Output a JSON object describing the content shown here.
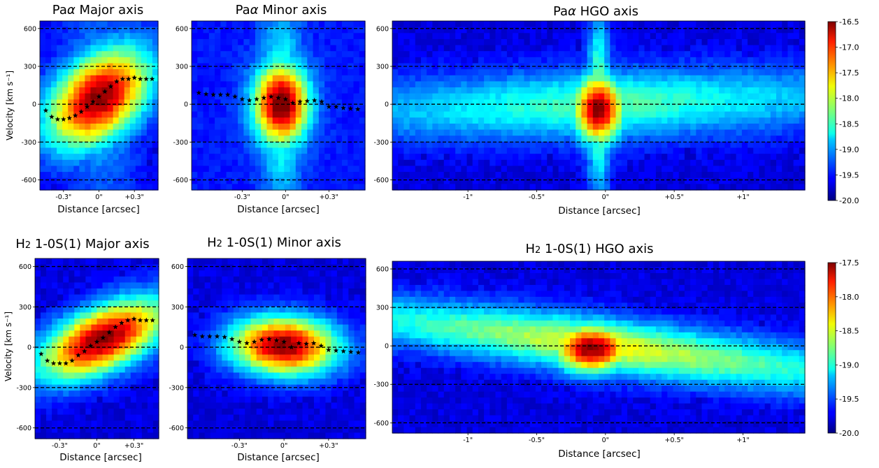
{
  "colors": {
    "dashed_line": "#000000",
    "stars": "#000000",
    "colormap": "jet"
  },
  "chart_data": [
    {
      "id": "pa_major",
      "type": "heatmap",
      "title_main": "Pa",
      "title_greek": "α",
      "title_rest": " Major axis",
      "xlabel": "Distance [arcsec]",
      "ylabel": "Velocity [km s⁻¹]",
      "xlim": [
        -0.5,
        0.5
      ],
      "ylim": [
        -680,
        660
      ],
      "xticks": [
        {
          "v": -0.3,
          "label": "-0.3\""
        },
        {
          "v": 0,
          "label": "0\""
        },
        {
          "v": 0.3,
          "label": "+0.3\""
        }
      ],
      "yticks": [
        {
          "v": 600,
          "label": "600"
        },
        {
          "v": 300,
          "label": "300"
        },
        {
          "v": 0,
          "label": "0"
        },
        {
          "v": -300,
          "label": "-300"
        },
        {
          "v": -600,
          "label": "-600"
        }
      ],
      "hlines": [
        600,
        300,
        0,
        -300,
        -600
      ],
      "emission": {
        "x0": 0.0,
        "v0": 50,
        "sx": 0.3,
        "sv": 250,
        "slope": 750,
        "peak": 1.0,
        "wing": 0.25,
        "wing_w": 0.25,
        "floor": 0.0
      },
      "rotation_curve": [
        [
          -0.45,
          -50
        ],
        [
          -0.4,
          -100
        ],
        [
          -0.35,
          -120
        ],
        [
          -0.3,
          -120
        ],
        [
          -0.25,
          -110
        ],
        [
          -0.2,
          -90
        ],
        [
          -0.15,
          -60
        ],
        [
          -0.1,
          -20
        ],
        [
          -0.05,
          20
        ],
        [
          0.0,
          60
        ],
        [
          0.05,
          100
        ],
        [
          0.1,
          140
        ],
        [
          0.15,
          180
        ],
        [
          0.2,
          200
        ],
        [
          0.25,
          200
        ],
        [
          0.3,
          210
        ],
        [
          0.35,
          200
        ],
        [
          0.4,
          200
        ],
        [
          0.45,
          200
        ]
      ]
    },
    {
      "id": "pa_minor",
      "type": "heatmap",
      "title_main": "Pa",
      "title_greek": "α",
      "title_rest": " Minor axis",
      "xlabel": "Distance [arcsec]",
      "ylabel": "",
      "xlim": [
        -0.65,
        0.55
      ],
      "ylim": [
        -680,
        660
      ],
      "xticks": [
        {
          "v": -0.3,
          "label": "-0.3\""
        },
        {
          "v": 0,
          "label": "0\""
        },
        {
          "v": 0.3,
          "label": "+0.3\""
        }
      ],
      "yticks": [
        {
          "v": 600,
          "label": "600"
        },
        {
          "v": 300,
          "label": "300"
        },
        {
          "v": 0,
          "label": "0"
        },
        {
          "v": -300,
          "label": "-300"
        },
        {
          "v": -600,
          "label": "-600"
        }
      ],
      "hlines": [
        600,
        300,
        0,
        -300,
        -600
      ],
      "emission": {
        "x0": -0.03,
        "v0": 0,
        "sx": 0.13,
        "sv": 220,
        "slope": 0,
        "peak": 1.0,
        "wing": 0.35,
        "wing_w": 0.1,
        "floor": 0.05
      },
      "rotation_curve": [
        [
          -0.6,
          90
        ],
        [
          -0.55,
          80
        ],
        [
          -0.5,
          75
        ],
        [
          -0.45,
          75
        ],
        [
          -0.4,
          75
        ],
        [
          -0.35,
          60
        ],
        [
          -0.3,
          40
        ],
        [
          -0.25,
          30
        ],
        [
          -0.2,
          40
        ],
        [
          -0.15,
          50
        ],
        [
          -0.1,
          60
        ],
        [
          -0.05,
          50
        ],
        [
          0.0,
          40
        ],
        [
          0.05,
          10
        ],
        [
          0.1,
          20
        ],
        [
          0.15,
          25
        ],
        [
          0.2,
          30
        ],
        [
          0.25,
          20
        ],
        [
          0.3,
          -20
        ],
        [
          0.35,
          -20
        ],
        [
          0.4,
          -30
        ],
        [
          0.45,
          -35
        ],
        [
          0.5,
          -40
        ]
      ]
    },
    {
      "id": "pa_hgo",
      "type": "heatmap",
      "title_main": "Pa",
      "title_greek": "α",
      "title_rest": " HGO axis",
      "xlabel": "Distance [arcsec]",
      "ylabel": "",
      "xlim": [
        -1.55,
        1.45
      ],
      "ylim": [
        -680,
        660
      ],
      "xticks": [
        {
          "v": -1,
          "label": "-1\""
        },
        {
          "v": -0.5,
          "label": "-0.5\""
        },
        {
          "v": 0,
          "label": "0\""
        },
        {
          "v": 0.5,
          "label": "+0.5\""
        },
        {
          "v": 1,
          "label": "+1\""
        }
      ],
      "yticks": [
        {
          "v": 600,
          "label": "600"
        },
        {
          "v": 300,
          "label": "300"
        },
        {
          "v": 0,
          "label": "0"
        },
        {
          "v": -300,
          "label": "-300"
        },
        {
          "v": -600,
          "label": "-600"
        }
      ],
      "hlines": [
        600,
        300,
        0,
        -300,
        -600
      ],
      "emission": {
        "x0": -0.05,
        "v0": -40,
        "sx": 0.13,
        "sv": 190,
        "slope": 0,
        "peak": 1.0,
        "wing": 0.45,
        "wing_w": 0.06,
        "floor": 0.0,
        "band": 0.42,
        "band_sv": 190,
        "band_tilt": 35
      },
      "rotation_curve": []
    },
    {
      "id": "h2_major",
      "type": "heatmap",
      "title_main": "H",
      "title_sub": "2",
      "title_rest": " 1-0S(1) Major axis",
      "xlabel": "Distance [arcsec]",
      "ylabel": "Velocity [km s⁻¹]",
      "xlim": [
        -0.5,
        0.5
      ],
      "ylim": [
        -680,
        660
      ],
      "xticks": [
        {
          "v": -0.3,
          "label": "-0.3\""
        },
        {
          "v": 0,
          "label": "0\""
        },
        {
          "v": 0.3,
          "label": "+0.3\""
        }
      ],
      "yticks": [
        {
          "v": 600,
          "label": "600"
        },
        {
          "v": 300,
          "label": "300"
        },
        {
          "v": 0,
          "label": "0"
        },
        {
          "v": -300,
          "label": "-300"
        },
        {
          "v": -600,
          "label": "-600"
        }
      ],
      "hlines": [
        600,
        300,
        0,
        -300,
        -600
      ],
      "emission": {
        "x0": 0.05,
        "v0": 60,
        "sx": 0.35,
        "sv": 170,
        "slope": 650,
        "peak": 1.0,
        "wing": 0.0,
        "wing_w": 0.2,
        "floor": 0.0
      },
      "rotation_curve": [
        [
          -0.45,
          -50
        ],
        [
          -0.4,
          -100
        ],
        [
          -0.35,
          -120
        ],
        [
          -0.3,
          -120
        ],
        [
          -0.25,
          -120
        ],
        [
          -0.2,
          -100
        ],
        [
          -0.15,
          -60
        ],
        [
          -0.1,
          -30
        ],
        [
          -0.05,
          10
        ],
        [
          0.0,
          40
        ],
        [
          0.05,
          70
        ],
        [
          0.1,
          110
        ],
        [
          0.15,
          150
        ],
        [
          0.2,
          180
        ],
        [
          0.25,
          200
        ],
        [
          0.3,
          210
        ],
        [
          0.35,
          200
        ],
        [
          0.4,
          200
        ],
        [
          0.45,
          200
        ]
      ]
    },
    {
      "id": "h2_minor",
      "type": "heatmap",
      "title_main": "H",
      "title_sub": "2",
      "title_rest": " 1-0S(1) Minor axis",
      "xlabel": "Distance [arcsec]",
      "ylabel": "",
      "xlim": [
        -0.65,
        0.55
      ],
      "ylim": [
        -680,
        660
      ],
      "xticks": [
        {
          "v": -0.3,
          "label": "-0.3\""
        },
        {
          "v": 0,
          "label": "0\""
        },
        {
          "v": 0.3,
          "label": "+0.3\""
        }
      ],
      "yticks": [
        {
          "v": 600,
          "label": "600"
        },
        {
          "v": 300,
          "label": "300"
        },
        {
          "v": 0,
          "label": "0"
        },
        {
          "v": -300,
          "label": "-300"
        },
        {
          "v": -600,
          "label": "-600"
        }
      ],
      "hlines": [
        600,
        300,
        0,
        -300,
        -600
      ],
      "emission": {
        "x0": 0.0,
        "v0": 10,
        "sx": 0.25,
        "sv": 150,
        "slope": -80,
        "peak": 1.0,
        "wing": 0.0,
        "wing_w": 0.2,
        "floor": 0.0
      },
      "rotation_curve": [
        [
          -0.6,
          90
        ],
        [
          -0.55,
          80
        ],
        [
          -0.5,
          80
        ],
        [
          -0.45,
          80
        ],
        [
          -0.4,
          75
        ],
        [
          -0.35,
          60
        ],
        [
          -0.3,
          40
        ],
        [
          -0.25,
          30
        ],
        [
          -0.2,
          40
        ],
        [
          -0.15,
          55
        ],
        [
          -0.1,
          60
        ],
        [
          -0.05,
          50
        ],
        [
          0.0,
          40
        ],
        [
          0.05,
          0
        ],
        [
          0.1,
          30
        ],
        [
          0.15,
          25
        ],
        [
          0.2,
          30
        ],
        [
          0.25,
          10
        ],
        [
          0.3,
          -20
        ],
        [
          0.35,
          -25
        ],
        [
          0.4,
          -30
        ],
        [
          0.45,
          -35
        ],
        [
          0.5,
          -40
        ]
      ]
    },
    {
      "id": "h2_hgo",
      "type": "heatmap",
      "title_main": "H",
      "title_sub": "2",
      "title_rest": " 1-0S(1) HGO axis",
      "xlabel": "Distance [arcsec]",
      "ylabel": "",
      "xlim": [
        -1.55,
        1.45
      ],
      "ylim": [
        -680,
        660
      ],
      "xticks": [
        {
          "v": -1,
          "label": "-1\""
        },
        {
          "v": -0.5,
          "label": "-0.5\""
        },
        {
          "v": 0,
          "label": "0\""
        },
        {
          "v": 0.5,
          "label": "+0.5\""
        },
        {
          "v": 1,
          "label": "+1\""
        }
      ],
      "yticks": [
        {
          "v": 600,
          "label": "600"
        },
        {
          "v": 300,
          "label": "300"
        },
        {
          "v": 0,
          "label": "0"
        },
        {
          "v": -300,
          "label": "-300"
        },
        {
          "v": -600,
          "label": "-600"
        }
      ],
      "hlines": [
        600,
        300,
        0,
        -300,
        -600
      ],
      "emission": {
        "x0": -0.1,
        "v0": -20,
        "sx": 0.2,
        "sv": 130,
        "slope": 0,
        "peak": 1.0,
        "wing": 0.0,
        "wing_w": 0.2,
        "floor": 0.0,
        "band": 0.6,
        "band_sv": 150,
        "band_tilt": -130
      },
      "rotation_curve": []
    }
  ],
  "colorbars": [
    {
      "id": "cb_top",
      "min": -20.0,
      "max": -16.5,
      "ticks": [
        "-16.5",
        "-17.0",
        "-17.5",
        "-18.0",
        "-18.5",
        "-19.0",
        "-19.5",
        "-20.0"
      ],
      "tick_values": [
        -16.5,
        -17.0,
        -17.5,
        -18.0,
        -18.5,
        -19.0,
        -19.5,
        -20.0
      ]
    },
    {
      "id": "cb_bottom",
      "min": -20.0,
      "max": -17.5,
      "ticks": [
        "-17.5",
        "-18.0",
        "-18.5",
        "-19.0",
        "-19.5",
        "-20.0"
      ],
      "tick_values": [
        -17.5,
        -18.0,
        -18.5,
        -19.0,
        -19.5,
        -20.0
      ]
    }
  ]
}
